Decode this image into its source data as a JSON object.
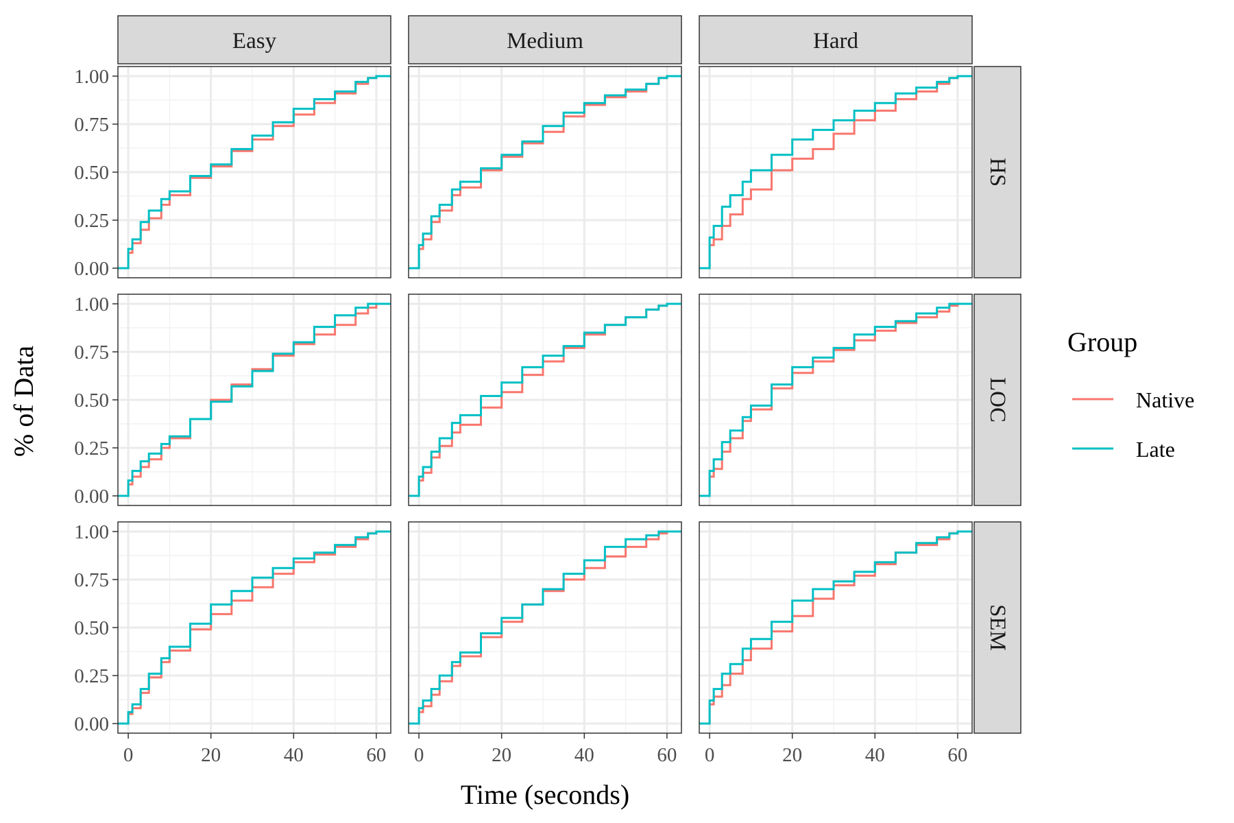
{
  "chart_data": {
    "type": "line",
    "subtype": "step-ecdf-facet-grid",
    "xlabel": "Time (seconds)",
    "ylabel": "% of Data",
    "xlim": [
      -2.5,
      63.5
    ],
    "ylim": [
      -0.05,
      1.05
    ],
    "x_ticks": [
      0,
      20,
      40,
      60
    ],
    "y_ticks": [
      0,
      0.25,
      0.5,
      0.75,
      1
    ],
    "y_tick_labels": [
      "0.00",
      "0.25",
      "0.50",
      "0.75",
      "1.00"
    ],
    "grid": true,
    "columns": [
      "Easy",
      "Medium",
      "Hard"
    ],
    "rows": [
      "HS",
      "LOC",
      "SEM"
    ],
    "legend": {
      "title": "Group",
      "position": "right",
      "entries": [
        {
          "name": "Native",
          "color": "#F8766D"
        },
        {
          "name": "Late",
          "color": "#00BFC4"
        }
      ]
    },
    "panels": [
      {
        "row": "HS",
        "col": "Easy",
        "series": [
          {
            "name": "Native",
            "x": [
              0,
              1,
              3,
              5,
              8,
              10,
              15,
              20,
              25,
              30,
              35,
              40,
              45,
              50,
              55,
              58,
              60
            ],
            "y": [
              0.08,
              0.13,
              0.2,
              0.26,
              0.33,
              0.38,
              0.47,
              0.53,
              0.61,
              0.67,
              0.74,
              0.8,
              0.86,
              0.91,
              0.96,
              0.99,
              1.0
            ]
          },
          {
            "name": "Late",
            "x": [
              0,
              1,
              3,
              5,
              8,
              10,
              15,
              20,
              25,
              30,
              35,
              40,
              45,
              50,
              55,
              58,
              60
            ],
            "y": [
              0.1,
              0.15,
              0.24,
              0.3,
              0.36,
              0.4,
              0.48,
              0.54,
              0.62,
              0.69,
              0.76,
              0.83,
              0.88,
              0.92,
              0.97,
              0.99,
              1.0
            ]
          }
        ]
      },
      {
        "row": "HS",
        "col": "Medium",
        "series": [
          {
            "name": "Native",
            "x": [
              0,
              1,
              3,
              5,
              8,
              10,
              15,
              20,
              25,
              30,
              35,
              40,
              45,
              50,
              55,
              58,
              60
            ],
            "y": [
              0.1,
              0.15,
              0.24,
              0.3,
              0.38,
              0.42,
              0.51,
              0.58,
              0.65,
              0.71,
              0.79,
              0.85,
              0.89,
              0.92,
              0.96,
              0.99,
              1.0
            ]
          },
          {
            "name": "Late",
            "x": [
              0,
              1,
              3,
              5,
              8,
              10,
              15,
              20,
              25,
              30,
              35,
              40,
              45,
              50,
              55,
              58,
              60
            ],
            "y": [
              0.12,
              0.18,
              0.27,
              0.33,
              0.41,
              0.45,
              0.52,
              0.59,
              0.66,
              0.74,
              0.81,
              0.86,
              0.9,
              0.93,
              0.96,
              0.99,
              1.0
            ]
          }
        ]
      },
      {
        "row": "HS",
        "col": "Hard",
        "series": [
          {
            "name": "Native",
            "x": [
              0,
              1,
              3,
              5,
              8,
              10,
              15,
              20,
              25,
              30,
              35,
              40,
              45,
              50,
              55,
              58,
              60
            ],
            "y": [
              0.12,
              0.15,
              0.22,
              0.28,
              0.36,
              0.41,
              0.51,
              0.57,
              0.62,
              0.7,
              0.77,
              0.82,
              0.88,
              0.92,
              0.96,
              0.99,
              1.0
            ]
          },
          {
            "name": "Late",
            "x": [
              0,
              1,
              3,
              5,
              8,
              10,
              15,
              20,
              25,
              30,
              35,
              40,
              45,
              50,
              55,
              58,
              60
            ],
            "y": [
              0.16,
              0.22,
              0.32,
              0.38,
              0.45,
              0.51,
              0.59,
              0.67,
              0.72,
              0.77,
              0.82,
              0.86,
              0.91,
              0.94,
              0.97,
              0.99,
              1.0
            ]
          }
        ]
      },
      {
        "row": "LOC",
        "col": "Easy",
        "series": [
          {
            "name": "Native",
            "x": [
              0,
              1,
              3,
              5,
              8,
              10,
              15,
              20,
              25,
              30,
              35,
              40,
              45,
              50,
              55,
              58,
              60
            ],
            "y": [
              0.06,
              0.1,
              0.15,
              0.19,
              0.25,
              0.3,
              0.4,
              0.5,
              0.58,
              0.66,
              0.73,
              0.79,
              0.84,
              0.89,
              0.95,
              0.98,
              1.0
            ]
          },
          {
            "name": "Late",
            "x": [
              0,
              1,
              3,
              5,
              8,
              10,
              15,
              20,
              25,
              30,
              35,
              40,
              45,
              50,
              55,
              58,
              60
            ],
            "y": [
              0.08,
              0.13,
              0.18,
              0.22,
              0.27,
              0.31,
              0.4,
              0.49,
              0.57,
              0.65,
              0.74,
              0.8,
              0.88,
              0.94,
              0.98,
              1.0,
              1.0
            ]
          }
        ]
      },
      {
        "row": "LOC",
        "col": "Medium",
        "series": [
          {
            "name": "Native",
            "x": [
              0,
              1,
              3,
              5,
              8,
              10,
              15,
              20,
              25,
              30,
              35,
              40,
              45,
              50,
              55,
              58,
              60
            ],
            "y": [
              0.08,
              0.12,
              0.2,
              0.26,
              0.33,
              0.37,
              0.46,
              0.54,
              0.63,
              0.7,
              0.77,
              0.84,
              0.89,
              0.93,
              0.97,
              0.99,
              1.0
            ]
          },
          {
            "name": "Late",
            "x": [
              0,
              1,
              3,
              5,
              8,
              10,
              15,
              20,
              25,
              30,
              35,
              40,
              45,
              50,
              55,
              58,
              60
            ],
            "y": [
              0.1,
              0.15,
              0.23,
              0.3,
              0.38,
              0.42,
              0.52,
              0.59,
              0.67,
              0.73,
              0.78,
              0.85,
              0.89,
              0.93,
              0.97,
              0.99,
              1.0
            ]
          }
        ]
      },
      {
        "row": "LOC",
        "col": "Hard",
        "series": [
          {
            "name": "Native",
            "x": [
              0,
              1,
              3,
              5,
              8,
              10,
              15,
              20,
              25,
              30,
              35,
              40,
              45,
              50,
              55,
              58,
              60
            ],
            "y": [
              0.1,
              0.14,
              0.23,
              0.3,
              0.39,
              0.45,
              0.56,
              0.64,
              0.7,
              0.76,
              0.81,
              0.86,
              0.9,
              0.93,
              0.96,
              0.99,
              1.0
            ]
          },
          {
            "name": "Late",
            "x": [
              0,
              1,
              3,
              5,
              8,
              10,
              15,
              20,
              25,
              30,
              35,
              40,
              45,
              50,
              55,
              58,
              60
            ],
            "y": [
              0.13,
              0.19,
              0.28,
              0.34,
              0.41,
              0.47,
              0.58,
              0.67,
              0.72,
              0.77,
              0.84,
              0.88,
              0.91,
              0.95,
              0.98,
              1.0,
              1.0
            ]
          }
        ]
      },
      {
        "row": "SEM",
        "col": "Easy",
        "series": [
          {
            "name": "Native",
            "x": [
              0,
              1,
              3,
              5,
              8,
              10,
              15,
              20,
              25,
              30,
              35,
              40,
              45,
              50,
              55,
              58,
              60
            ],
            "y": [
              0.05,
              0.08,
              0.16,
              0.24,
              0.32,
              0.38,
              0.49,
              0.57,
              0.64,
              0.71,
              0.78,
              0.84,
              0.88,
              0.92,
              0.96,
              0.99,
              1.0
            ]
          },
          {
            "name": "Late",
            "x": [
              0,
              1,
              3,
              5,
              8,
              10,
              15,
              20,
              25,
              30,
              35,
              40,
              45,
              50,
              55,
              58,
              60
            ],
            "y": [
              0.06,
              0.1,
              0.18,
              0.26,
              0.34,
              0.4,
              0.52,
              0.62,
              0.69,
              0.76,
              0.81,
              0.86,
              0.89,
              0.93,
              0.97,
              0.99,
              1.0
            ]
          }
        ]
      },
      {
        "row": "SEM",
        "col": "Medium",
        "series": [
          {
            "name": "Native",
            "x": [
              0,
              1,
              3,
              5,
              8,
              10,
              15,
              20,
              25,
              30,
              35,
              40,
              45,
              50,
              55,
              58,
              60
            ],
            "y": [
              0.06,
              0.09,
              0.15,
              0.22,
              0.3,
              0.35,
              0.45,
              0.53,
              0.62,
              0.69,
              0.75,
              0.81,
              0.87,
              0.92,
              0.96,
              0.99,
              1.0
            ]
          },
          {
            "name": "Late",
            "x": [
              0,
              1,
              3,
              5,
              8,
              10,
              15,
              20,
              25,
              30,
              35,
              40,
              45,
              50,
              55,
              58,
              60
            ],
            "y": [
              0.08,
              0.12,
              0.18,
              0.25,
              0.32,
              0.37,
              0.47,
              0.55,
              0.62,
              0.7,
              0.78,
              0.85,
              0.92,
              0.96,
              0.98,
              1.0,
              1.0
            ]
          }
        ]
      },
      {
        "row": "SEM",
        "col": "Hard",
        "series": [
          {
            "name": "Native",
            "x": [
              0,
              1,
              3,
              5,
              8,
              10,
              15,
              20,
              25,
              30,
              35,
              40,
              45,
              50,
              55,
              58,
              60
            ],
            "y": [
              0.1,
              0.14,
              0.2,
              0.26,
              0.33,
              0.39,
              0.48,
              0.56,
              0.65,
              0.72,
              0.77,
              0.83,
              0.89,
              0.93,
              0.96,
              0.99,
              1.0
            ]
          },
          {
            "name": "Late",
            "x": [
              0,
              1,
              3,
              5,
              8,
              10,
              15,
              20,
              25,
              30,
              35,
              40,
              45,
              50,
              55,
              58,
              60
            ],
            "y": [
              0.12,
              0.18,
              0.26,
              0.31,
              0.39,
              0.44,
              0.53,
              0.64,
              0.7,
              0.74,
              0.79,
              0.84,
              0.89,
              0.94,
              0.97,
              0.99,
              1.0
            ]
          }
        ]
      }
    ]
  }
}
